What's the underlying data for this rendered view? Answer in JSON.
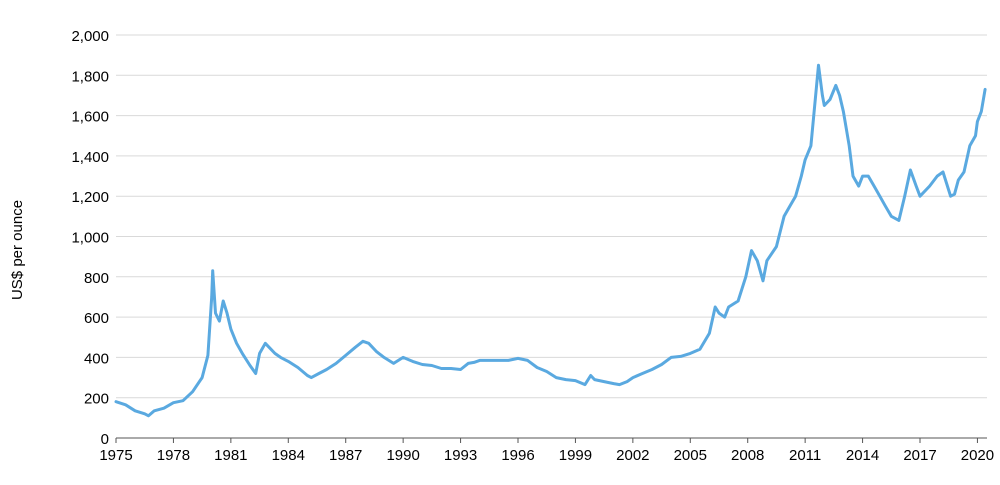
{
  "chart_data": {
    "type": "line",
    "title": "",
    "xlabel": "",
    "ylabel": "US$ per ounce",
    "xlim": [
      1975,
      2020.5
    ],
    "ylim": [
      0,
      2000
    ],
    "grid": true,
    "line_color": "#5aa9e0",
    "x_ticks": [
      1975,
      1978,
      1981,
      1984,
      1987,
      1990,
      1993,
      1996,
      1999,
      2002,
      2005,
      2008,
      2011,
      2014,
      2017,
      2020
    ],
    "x_tick_labels": [
      "1975",
      "1978",
      "1981",
      "1984",
      "1987",
      "1990",
      "1993",
      "1996",
      "1999",
      "2002",
      "2005",
      "2008",
      "2011",
      "2014",
      "2017",
      "2020"
    ],
    "y_ticks": [
      0,
      200,
      400,
      600,
      800,
      1000,
      1200,
      1400,
      1600,
      1800,
      2000
    ],
    "y_tick_labels": [
      "0",
      "200",
      "400",
      "600",
      "800",
      "1,000",
      "1,200",
      "1,400",
      "1,600",
      "1,800",
      "2,000"
    ],
    "series": [
      {
        "name": "",
        "x": [
          1975.0,
          1975.5,
          1976.0,
          1976.5,
          1976.7,
          1977.0,
          1977.5,
          1978.0,
          1978.5,
          1979.0,
          1979.5,
          1979.8,
          1980.0,
          1980.05,
          1980.2,
          1980.4,
          1980.6,
          1980.8,
          1981.0,
          1981.3,
          1981.6,
          1982.0,
          1982.3,
          1982.5,
          1982.8,
          1983.0,
          1983.3,
          1983.6,
          1984.0,
          1984.5,
          1985.0,
          1985.2,
          1985.6,
          1986.0,
          1986.5,
          1987.0,
          1987.5,
          1987.9,
          1988.2,
          1988.6,
          1989.0,
          1989.5,
          1990.0,
          1990.5,
          1991.0,
          1991.5,
          1992.0,
          1992.5,
          1993.0,
          1993.4,
          1993.7,
          1994.0,
          1994.5,
          1995.0,
          1995.5,
          1996.0,
          1996.5,
          1997.0,
          1997.5,
          1998.0,
          1998.5,
          1999.0,
          1999.5,
          1999.8,
          2000.0,
          2000.5,
          2001.0,
          2001.3,
          2001.7,
          2002.0,
          2002.5,
          2003.0,
          2003.5,
          2004.0,
          2004.5,
          2005.0,
          2005.5,
          2006.0,
          2006.3,
          2006.5,
          2006.8,
          2007.0,
          2007.5,
          2007.9,
          2008.2,
          2008.5,
          2008.8,
          2009.0,
          2009.5,
          2009.9,
          2010.2,
          2010.5,
          2010.8,
          2011.0,
          2011.3,
          2011.6,
          2011.7,
          2011.9,
          2012.0,
          2012.3,
          2012.6,
          2012.8,
          2013.0,
          2013.3,
          2013.5,
          2013.8,
          2014.0,
          2014.3,
          2014.6,
          2014.9,
          2015.2,
          2015.5,
          2015.9,
          2016.2,
          2016.5,
          2016.8,
          2017.0,
          2017.5,
          2017.9,
          2018.2,
          2018.6,
          2018.8,
          2019.0,
          2019.3,
          2019.6,
          2019.9,
          2020.0,
          2020.2,
          2020.4
        ],
        "y": [
          180,
          165,
          135,
          120,
          110,
          135,
          148,
          175,
          185,
          230,
          300,
          410,
          700,
          830,
          620,
          580,
          680,
          620,
          540,
          470,
          420,
          360,
          320,
          420,
          470,
          450,
          420,
          400,
          380,
          350,
          310,
          300,
          320,
          340,
          370,
          410,
          450,
          480,
          470,
          430,
          400,
          370,
          400,
          380,
          365,
          360,
          345,
          345,
          340,
          370,
          375,
          385,
          385,
          385,
          385,
          395,
          385,
          350,
          330,
          300,
          290,
          285,
          265,
          310,
          290,
          280,
          270,
          265,
          280,
          300,
          320,
          340,
          365,
          400,
          405,
          420,
          440,
          520,
          650,
          620,
          600,
          650,
          680,
          800,
          930,
          880,
          780,
          880,
          950,
          1100,
          1150,
          1200,
          1300,
          1380,
          1450,
          1750,
          1850,
          1700,
          1650,
          1680,
          1750,
          1700,
          1620,
          1450,
          1300,
          1250,
          1300,
          1300,
          1250,
          1200,
          1150,
          1100,
          1080,
          1200,
          1330,
          1250,
          1200,
          1250,
          1300,
          1320,
          1200,
          1210,
          1280,
          1320,
          1450,
          1500,
          1570,
          1620,
          1730
        ]
      }
    ]
  }
}
